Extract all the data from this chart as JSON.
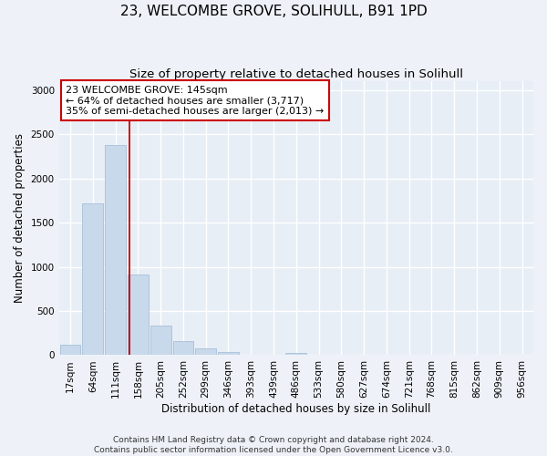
{
  "title": "23, WELCOMBE GROVE, SOLIHULL, B91 1PD",
  "subtitle": "Size of property relative to detached houses in Solihull",
  "xlabel": "Distribution of detached houses by size in Solihull",
  "ylabel": "Number of detached properties",
  "bar_color": "#c8d9ec",
  "bar_edge_color": "#a8c0d8",
  "bin_labels": [
    "17sqm",
    "64sqm",
    "111sqm",
    "158sqm",
    "205sqm",
    "252sqm",
    "299sqm",
    "346sqm",
    "393sqm",
    "439sqm",
    "486sqm",
    "533sqm",
    "580sqm",
    "627sqm",
    "674sqm",
    "721sqm",
    "768sqm",
    "815sqm",
    "862sqm",
    "909sqm",
    "956sqm"
  ],
  "bar_heights": [
    120,
    1720,
    2380,
    910,
    340,
    155,
    80,
    38,
    0,
    0,
    30,
    0,
    0,
    0,
    0,
    0,
    0,
    0,
    0,
    0,
    0
  ],
  "ylim": [
    0,
    3100
  ],
  "yticks": [
    0,
    500,
    1000,
    1500,
    2000,
    2500,
    3000
  ],
  "property_line_x": 2.64,
  "annotation_title": "23 WELCOMBE GROVE: 145sqm",
  "annotation_line1": "← 64% of detached houses are smaller (3,717)",
  "annotation_line2": "35% of semi-detached houses are larger (2,013) →",
  "annotation_box_color": "#ffffff",
  "annotation_box_edge": "#cc0000",
  "vline_color": "#cc0000",
  "footer1": "Contains HM Land Registry data © Crown copyright and database right 2024.",
  "footer2": "Contains public sector information licensed under the Open Government Licence v3.0.",
  "background_color": "#eef2f8",
  "plot_background": "#e8eef6",
  "grid_color": "#ffffff",
  "title_fontsize": 11,
  "subtitle_fontsize": 9.5,
  "axis_label_fontsize": 8.5,
  "tick_fontsize": 7.5,
  "annotation_fontsize": 8,
  "footer_fontsize": 6.5
}
